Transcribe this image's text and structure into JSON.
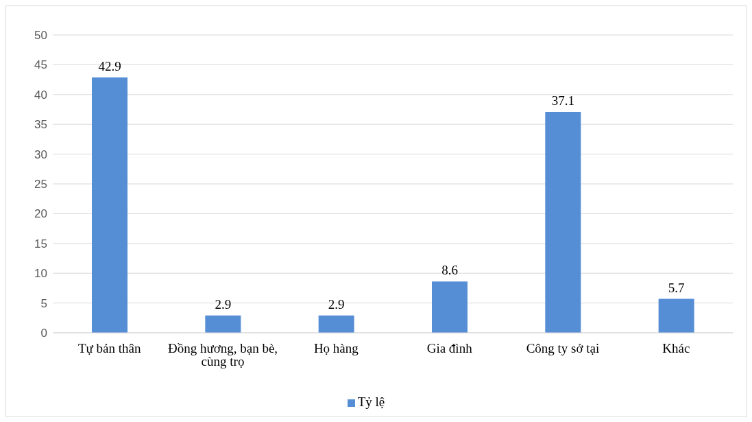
{
  "chart_data": {
    "type": "bar",
    "categories": [
      "Tự bản thân",
      "Đồng hương, bạn bè, cùng trọ",
      "Họ hàng",
      "Gia đình",
      "Công ty sở tại",
      "Khác"
    ],
    "series": [
      {
        "name": "Tỷ lệ",
        "color": "#558ed5",
        "values": [
          42.9,
          2.9,
          2.9,
          8.6,
          37.1,
          5.7
        ]
      }
    ],
    "ylim": [
      0,
      50
    ],
    "yticks": [
      0,
      5,
      10,
      15,
      20,
      25,
      30,
      35,
      40,
      45,
      50
    ],
    "grid": "y",
    "legend": "bottom",
    "data_labels": true
  }
}
